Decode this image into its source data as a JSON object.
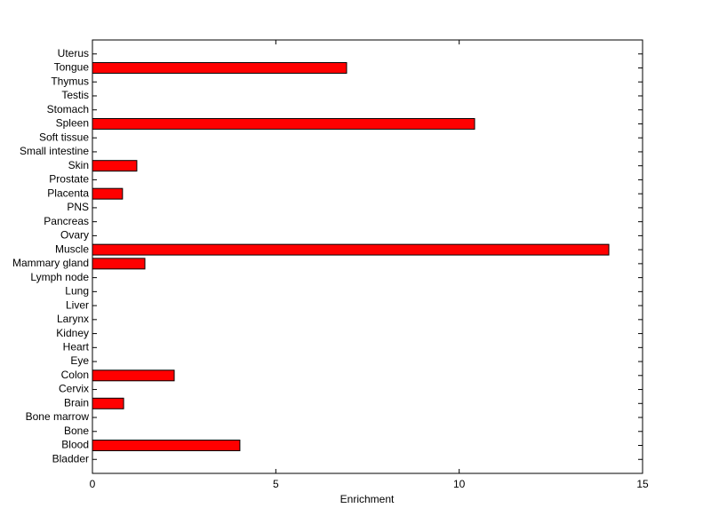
{
  "chart_data": {
    "type": "barh",
    "categories": [
      "Bladder",
      "Blood",
      "Bone",
      "Bone marrow",
      "Brain",
      "Cervix",
      "Colon",
      "Eye",
      "Heart",
      "Kidney",
      "Larynx",
      "Liver",
      "Lung",
      "Lymph node",
      "Mammary gland",
      "Muscle",
      "Ovary",
      "Pancreas",
      "PNS",
      "Placenta",
      "Prostate",
      "Skin",
      "Small intestine",
      "Soft tissue",
      "Spleen",
      "Stomach",
      "Testis",
      "Thymus",
      "Tongue",
      "Uterus"
    ],
    "values": [
      0,
      4.02,
      0,
      0,
      0.85,
      0,
      2.23,
      0,
      0,
      0,
      0,
      0,
      0,
      0,
      1.43,
      14.08,
      0,
      0,
      0,
      0.82,
      0,
      1.21,
      0,
      0,
      10.42,
      0,
      0,
      0,
      6.93,
      0
    ],
    "color": "#ff0000",
    "xlabel": "Enrichment",
    "xlim": [
      0,
      15
    ],
    "xticks": [
      0,
      5,
      10,
      15
    ]
  }
}
